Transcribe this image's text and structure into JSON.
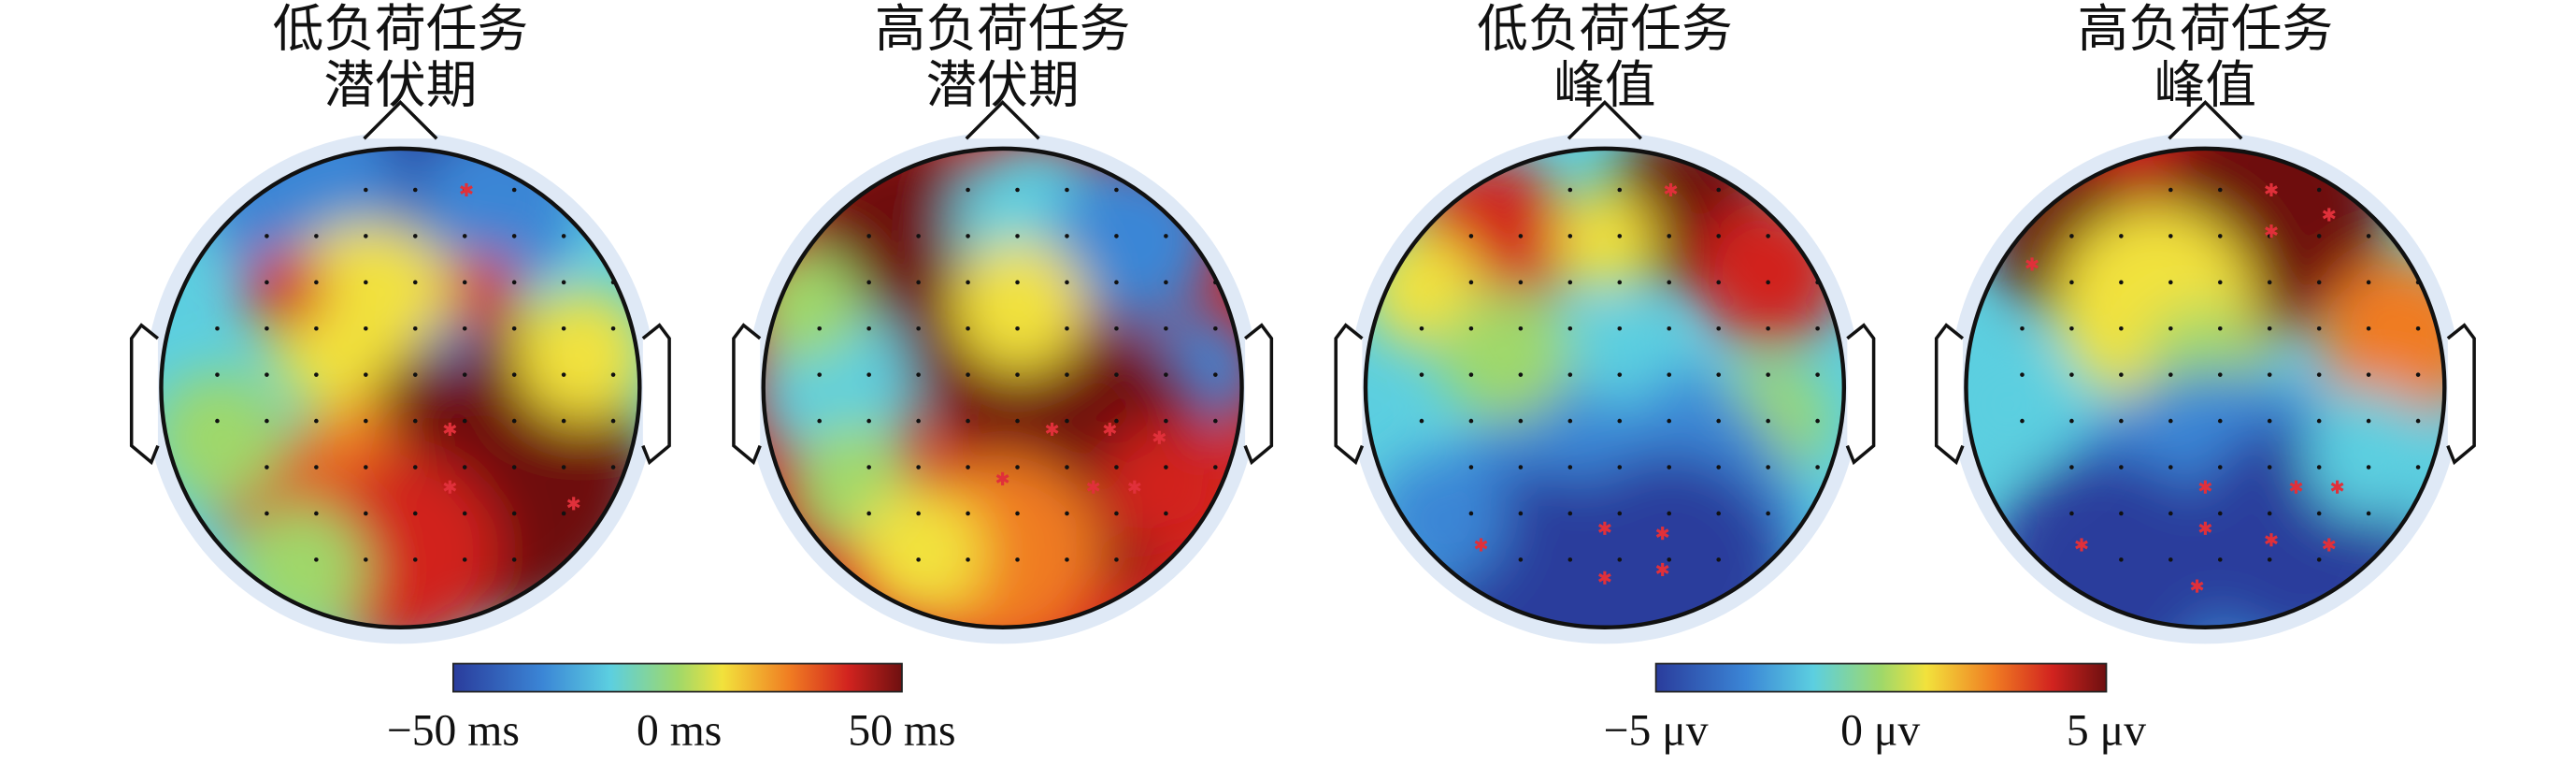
{
  "panels": [
    {
      "title_line1": "低负荷任务",
      "title_line2": "潜伏期"
    },
    {
      "title_line1": "高负荷任务",
      "title_line2": "潜伏期"
    },
    {
      "title_line1": "低负荷任务",
      "title_line2": "峰值"
    },
    {
      "title_line1": "高负荷任务",
      "title_line2": "峰值"
    }
  ],
  "colorbars": [
    {
      "tick_labels": [
        "−50 ms",
        "0 ms",
        "50 ms"
      ]
    },
    {
      "tick_labels": [
        "−5 μv",
        "0 μv",
        "5 μv"
      ]
    }
  ]
}
